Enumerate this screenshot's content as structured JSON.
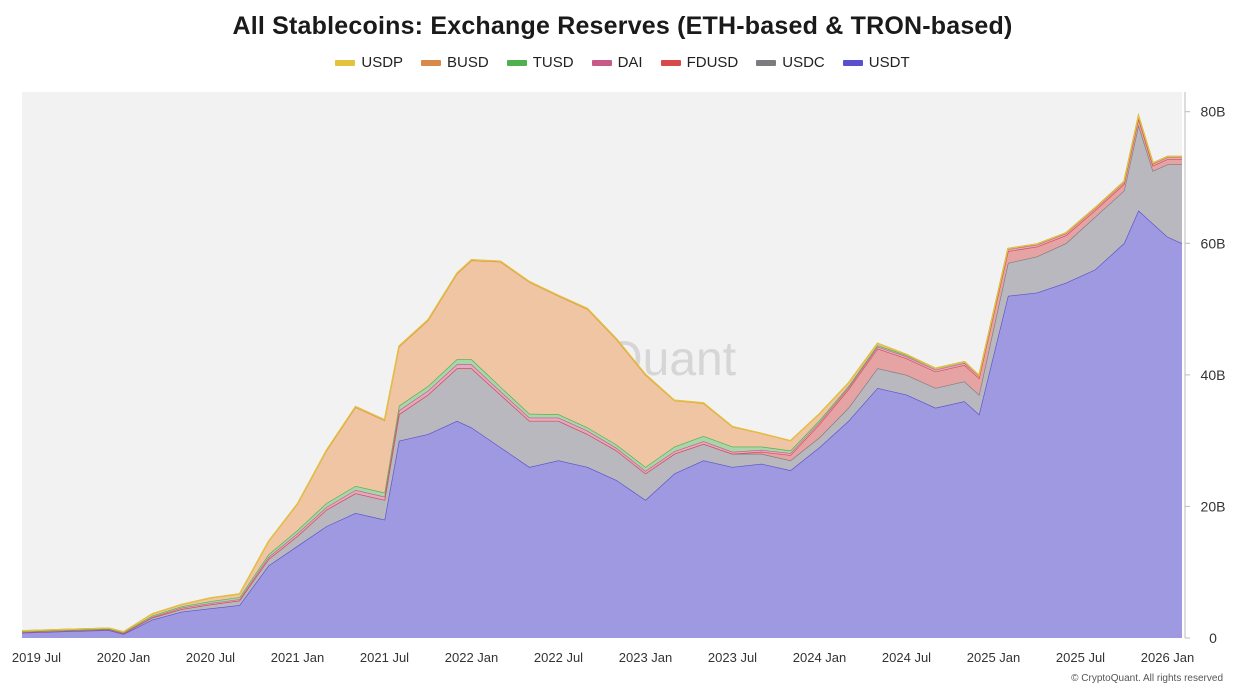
{
  "chart_data": {
    "type": "area",
    "stacked": true,
    "title": "All Stablecoins: Exchange Reserves (ETH-based & TRON-based)",
    "watermark": "CryptoQuant",
    "footer": "© CryptoQuant. All rights reserved",
    "legend_position": "top-center",
    "grid": false,
    "x_ticks": [
      "2019 Jul",
      "2020 Jan",
      "2020 Jul",
      "2021 Jan",
      "2021 Jul",
      "2022 Jan",
      "2022 Jul",
      "2023 Jan",
      "2023 Jul",
      "2024 Jan",
      "2024 Jul",
      "2025 Jan",
      "2025 Jul",
      "2026 Jan"
    ],
    "y_ticks": [
      "0",
      "20B",
      "40B",
      "60B",
      "80B"
    ],
    "y_unit": "B",
    "ylim": [
      0,
      83
    ],
    "xlim": [
      "2019-06",
      "2026-02"
    ],
    "x": [
      "2019-06",
      "2019-09",
      "2019-12",
      "2020-01",
      "2020-03",
      "2020-05",
      "2020-07",
      "2020-09",
      "2020-11",
      "2021-01",
      "2021-03",
      "2021-05",
      "2021-07",
      "2021-08",
      "2021-10",
      "2021-12",
      "2022-01",
      "2022-03",
      "2022-05",
      "2022-07",
      "2022-09",
      "2022-11",
      "2023-01",
      "2023-03",
      "2023-05",
      "2023-07",
      "2023-09",
      "2023-11",
      "2024-01",
      "2024-03",
      "2024-05",
      "2024-07",
      "2024-09",
      "2024-11",
      "2024-12",
      "2025-02",
      "2025-04",
      "2025-06",
      "2025-08",
      "2025-10",
      "2025-11",
      "2025-12",
      "2026-01",
      "2026-02"
    ],
    "series": [
      {
        "name": "USDT",
        "color": "#5a50cf",
        "fill": "#9e99e0",
        "values": [
          0.8,
          1.0,
          1.2,
          0.6,
          2.8,
          4.0,
          4.5,
          5.0,
          11.0,
          14.0,
          17.0,
          19.0,
          18.0,
          30.0,
          31.0,
          33.0,
          32.0,
          29.0,
          26.0,
          27.0,
          26.0,
          24.0,
          21.0,
          25.0,
          27.0,
          26.0,
          26.5,
          25.5,
          29.0,
          33.0,
          38.0,
          37.0,
          35.0,
          36.0,
          34.0,
          52.0,
          52.5,
          54.0,
          56.0,
          60.0,
          65.0,
          63.0,
          61.0,
          60.0
        ]
      },
      {
        "name": "USDC",
        "color": "#7c7c80",
        "fill": "#b9b8bf",
        "values": [
          0.1,
          0.1,
          0.1,
          0.1,
          0.3,
          0.4,
          0.6,
          0.7,
          1.0,
          1.5,
          2.5,
          3.0,
          3.0,
          4.0,
          6.0,
          8.0,
          9.0,
          8.0,
          7.0,
          6.0,
          5.0,
          4.5,
          4.0,
          3.0,
          2.5,
          2.0,
          1.5,
          1.5,
          1.5,
          2.0,
          3.0,
          3.0,
          3.0,
          3.0,
          3.0,
          5.0,
          5.5,
          6.0,
          8.0,
          8.0,
          13.0,
          8.0,
          11.0,
          12.0
        ]
      },
      {
        "name": "FDUSD",
        "color": "#d84a4a",
        "fill": "#e6a3a3",
        "values": [
          0,
          0,
          0,
          0,
          0,
          0,
          0,
          0,
          0,
          0,
          0,
          0,
          0,
          0,
          0,
          0,
          0,
          0,
          0,
          0,
          0,
          0,
          0,
          0,
          0,
          0,
          0.3,
          0.8,
          2.0,
          2.8,
          3.0,
          2.5,
          2.5,
          2.5,
          2.5,
          1.8,
          1.5,
          1.2,
          1.0,
          1.0,
          1.0,
          0.8,
          0.8,
          0.8
        ]
      },
      {
        "name": "DAI",
        "color": "#c85a8a",
        "fill": "#e2aac3",
        "values": [
          0,
          0,
          0,
          0.05,
          0.1,
          0.2,
          0.2,
          0.2,
          0.3,
          0.4,
          0.4,
          0.5,
          0.5,
          0.6,
          0.6,
          0.6,
          0.6,
          0.5,
          0.5,
          0.5,
          0.5,
          0.4,
          0.4,
          0.4,
          0.4,
          0.3,
          0.3,
          0.3,
          0.3,
          0.3,
          0.3,
          0.3,
          0.3,
          0.3,
          0.3,
          0.3,
          0.3,
          0.3,
          0.3,
          0.3,
          0.3,
          0.3,
          0.3,
          0.3
        ]
      },
      {
        "name": "TUSD",
        "color": "#4fb04f",
        "fill": "#a8d6a8",
        "values": [
          0.1,
          0.1,
          0.1,
          0.1,
          0.2,
          0.2,
          0.3,
          0.3,
          0.4,
          0.5,
          0.6,
          0.6,
          0.6,
          0.7,
          0.7,
          0.8,
          0.8,
          0.7,
          0.6,
          0.5,
          0.5,
          0.5,
          0.6,
          0.7,
          0.8,
          0.8,
          0.5,
          0.4,
          0.3,
          0.2,
          0.2,
          0.2,
          0.2,
          0.2,
          0.1,
          0.1,
          0.1,
          0.1,
          0.1,
          0.1,
          0.1,
          0.1,
          0.1,
          0.1
        ]
      },
      {
        "name": "BUSD",
        "color": "#d98a4a",
        "fill": "#efc5a3",
        "values": [
          0.1,
          0.1,
          0.1,
          0.1,
          0.3,
          0.3,
          0.5,
          0.5,
          2.0,
          4.0,
          8.0,
          12.0,
          11.0,
          9.0,
          10.0,
          13.0,
          15.0,
          19.0,
          20.0,
          18.0,
          18.0,
          16.0,
          14.0,
          7.0,
          5.0,
          3.0,
          2.0,
          1.5,
          1.0,
          0.5,
          0.3,
          0.1,
          0,
          0,
          0,
          0,
          0,
          0,
          0,
          0,
          0,
          0,
          0,
          0
        ]
      },
      {
        "name": "USDP",
        "color": "#e3c23c",
        "fill": "#f1e0a0",
        "values": [
          0,
          0,
          0,
          0,
          0,
          0,
          0,
          0,
          0,
          0.05,
          0.1,
          0.1,
          0.1,
          0.1,
          0.1,
          0.1,
          0.1,
          0.1,
          0.1,
          0.1,
          0.1,
          0.1,
          0.1,
          0.05,
          0.05,
          0.05,
          0,
          0,
          0,
          0,
          0,
          0,
          0,
          0,
          0,
          0,
          0,
          0,
          0,
          0,
          0,
          0,
          0,
          0
        ]
      }
    ]
  }
}
